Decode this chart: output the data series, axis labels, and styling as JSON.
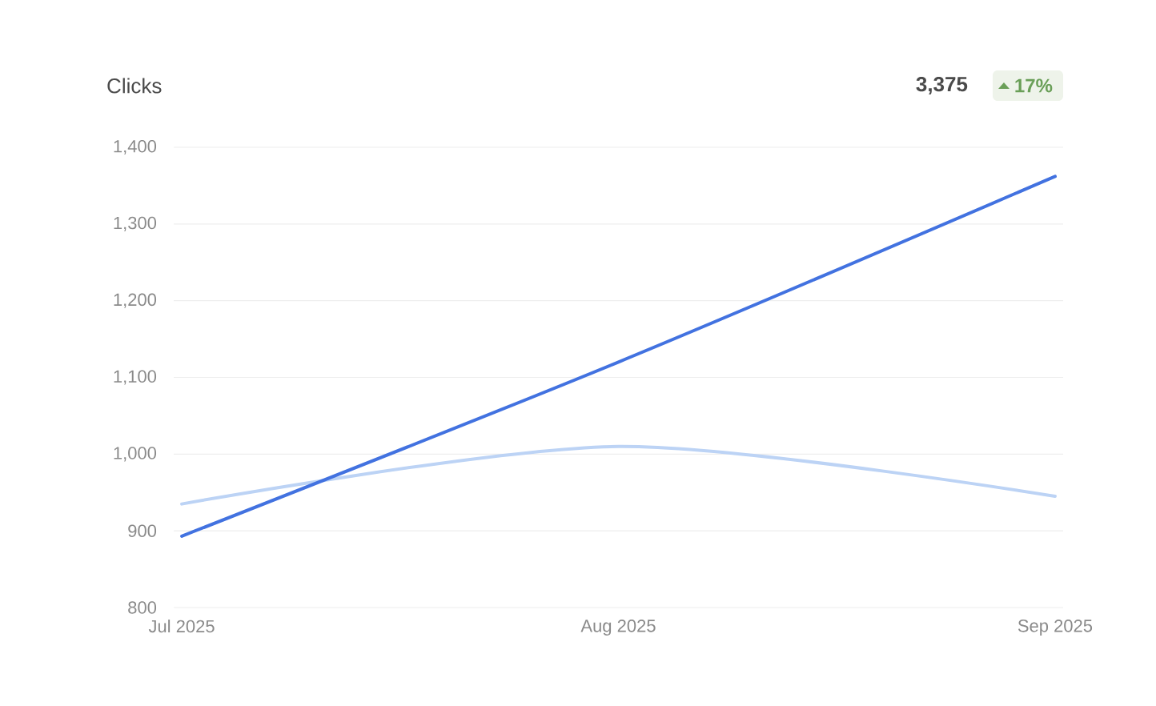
{
  "chart_data": {
    "type": "line",
    "title": "Clicks",
    "categories": [
      "Jul 2025",
      "Aug 2025",
      "Sep 2025"
    ],
    "series": [
      {
        "color": "#bcd3f5",
        "values": [
          935,
          1010,
          945
        ]
      },
      {
        "color": "#4272e0",
        "values": [
          893,
          1120,
          1362
        ]
      }
    ],
    "ylim": [
      800,
      1400
    ],
    "yticks": [
      800,
      900,
      {
        "value": 1000,
        "label": "1,000"
      },
      {
        "value": 1100,
        "label": "1,100"
      },
      {
        "value": 1200,
        "label": "1,200"
      },
      {
        "value": 1300,
        "label": "1,300"
      },
      {
        "value": 1400,
        "label": "1,400"
      }
    ],
    "grid": "y",
    "annotations": [
      "3,375",
      "17%"
    ]
  }
}
